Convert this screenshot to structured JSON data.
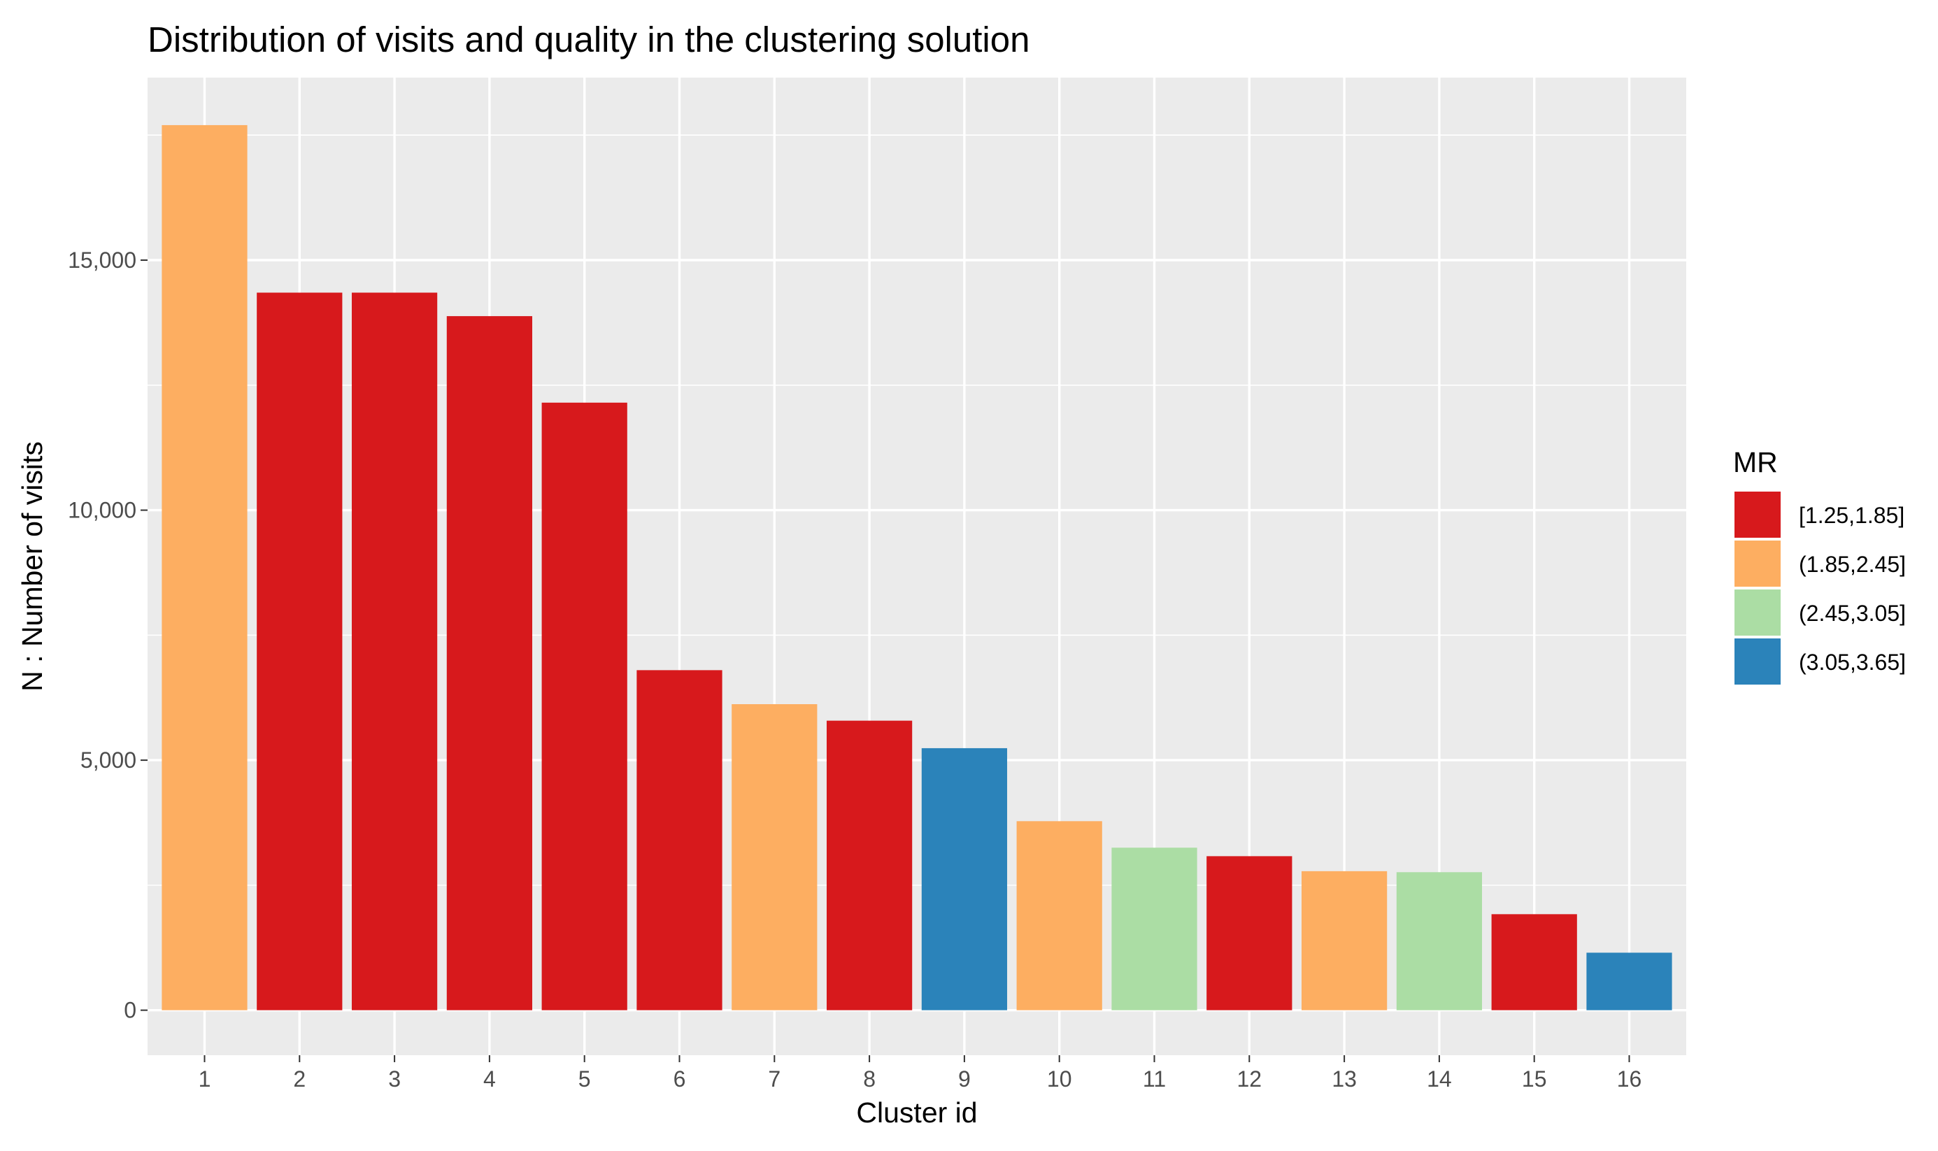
{
  "chart_data": {
    "type": "bar",
    "title": "Distribution of visits and quality in the clustering solution",
    "xlabel": "Cluster id",
    "ylabel": "N : Number of visits",
    "categories": [
      "1",
      "2",
      "3",
      "4",
      "5",
      "6",
      "7",
      "8",
      "9",
      "10",
      "11",
      "12",
      "13",
      "14",
      "15",
      "16"
    ],
    "values": [
      17700,
      14350,
      14350,
      13880,
      12150,
      6800,
      6120,
      5790,
      5240,
      3780,
      3250,
      3080,
      2780,
      2760,
      1920,
      1150
    ],
    "mr_class": [
      "(1.85,2.45]",
      "[1.25,1.85]",
      "[1.25,1.85]",
      "[1.25,1.85]",
      "[1.25,1.85]",
      "[1.25,1.85]",
      "(1.85,2.45]",
      "[1.25,1.85]",
      "(3.05,3.65]",
      "(1.85,2.45]",
      "(2.45,3.05]",
      "[1.25,1.85]",
      "(1.85,2.45]",
      "(2.45,3.05]",
      "[1.25,1.85]",
      "(3.05,3.65]"
    ],
    "ylim": [
      -900,
      18650
    ],
    "yticks": [
      0,
      5000,
      10000,
      15000
    ],
    "ytick_labels": [
      "0",
      "5,000",
      "10,000",
      "15,000"
    ],
    "grid": true,
    "legend": {
      "title": "MR",
      "placement": "right",
      "entries": [
        {
          "label": "[1.25,1.85]",
          "color": "#d7191c"
        },
        {
          "label": "(1.85,2.45]",
          "color": "#fdae61"
        },
        {
          "label": "(2.45,3.05]",
          "color": "#abdda4"
        },
        {
          "label": "(3.05,3.65]",
          "color": "#2b83ba"
        }
      ]
    },
    "colors": {
      "panel_background": "#ebebeb",
      "gridline": "#ffffff",
      "tick_color": "#333333"
    }
  }
}
